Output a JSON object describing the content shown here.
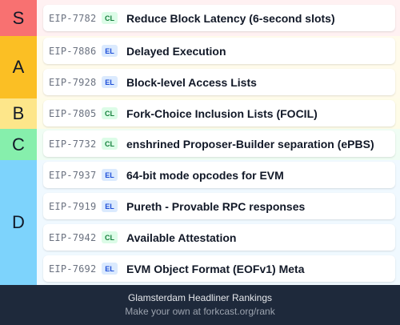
{
  "colors": {
    "tier_s": "#f87171",
    "tier_a": "#fbbf24",
    "tier_b": "#fde68a",
    "tier_c": "#86efac",
    "tier_d": "#7dd3fc",
    "body_s": "#fff1f2",
    "body_a": "#fffbeb",
    "body_b": "#fefce8",
    "body_c": "#f0fdf4",
    "body_d": "#f0f9ff",
    "footer_bg": "#1e293b"
  },
  "tiers": [
    {
      "label": "S",
      "items": [
        {
          "eip": "EIP-7782",
          "layer": "CL",
          "title": "Reduce Block Latency (6-second slots)"
        }
      ]
    },
    {
      "label": "A",
      "items": [
        {
          "eip": "EIP-7886",
          "layer": "EL",
          "title": "Delayed Execution"
        },
        {
          "eip": "EIP-7928",
          "layer": "EL",
          "title": "Block-level Access Lists"
        }
      ]
    },
    {
      "label": "B",
      "items": [
        {
          "eip": "EIP-7805",
          "layer": "CL",
          "title": "Fork-Choice Inclusion Lists (FOCIL)"
        }
      ]
    },
    {
      "label": "C",
      "items": [
        {
          "eip": "EIP-7732",
          "layer": "CL",
          "title": "enshrined Proposer-Builder separation (ePBS)"
        }
      ]
    },
    {
      "label": "D",
      "items": [
        {
          "eip": "EIP-7937",
          "layer": "EL",
          "title": "64-bit mode opcodes for EVM"
        },
        {
          "eip": "EIP-7919",
          "layer": "EL",
          "title": "Pureth - Provable RPC responses"
        },
        {
          "eip": "EIP-7942",
          "layer": "CL",
          "title": "Available Attestation"
        },
        {
          "eip": "EIP-7692",
          "layer": "EL",
          "title": "EVM Object Format (EOFv1) Meta"
        }
      ]
    }
  ],
  "footer": {
    "title": "Glamsterdam Headliner Rankings",
    "link_text": "Make your own at forkcast.org/rank"
  }
}
